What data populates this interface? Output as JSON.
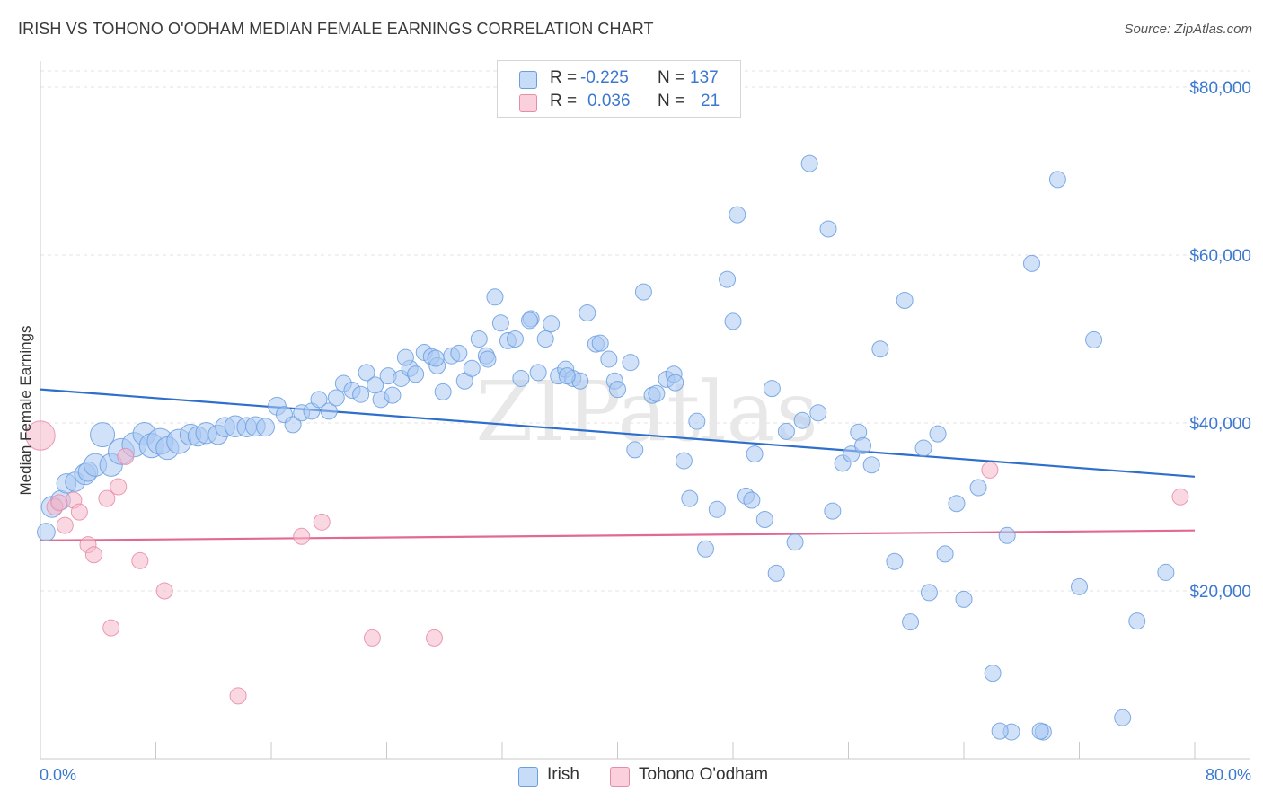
{
  "header": {
    "title": "IRISH VS TOHONO O'ODHAM MEDIAN FEMALE EARNINGS CORRELATION CHART",
    "source": "Source: ZipAtlas.com"
  },
  "legend": {
    "rows": [
      {
        "r_label": "R =",
        "r_value": "-0.225",
        "n_label": "N =",
        "n_value": "137",
        "color": "#a9c8f2"
      },
      {
        "r_label": "R =",
        "r_value": "0.036",
        "n_label": "N =",
        "n_value": "21",
        "color": "#f5b8cb"
      }
    ]
  },
  "bottom_legend": {
    "items": [
      {
        "label": "Irish",
        "color": "#a9c8f2"
      },
      {
        "label": "Tohono O'odham",
        "color": "#f5b8cb"
      }
    ]
  },
  "watermark": "ZIPatlas",
  "chart_data": {
    "type": "scatter",
    "title": "IRISH VS TOHONO O'ODHAM MEDIAN FEMALE EARNINGS CORRELATION CHART",
    "xlabel": "",
    "ylabel": "Median Female Earnings",
    "xlim": [
      0,
      80
    ],
    "ylim": [
      0,
      82000
    ],
    "x_tick_labels": [
      "0.0%",
      "80.0%"
    ],
    "y_ticks": [
      20000,
      40000,
      60000,
      80000
    ],
    "y_tick_labels": [
      "$20,000",
      "$40,000",
      "$60,000",
      "$80,000"
    ],
    "grid": "horizontal dashed",
    "legend_position": "top-center",
    "series": [
      {
        "name": "Irish",
        "color": "#6a9ee0",
        "fill": "#a9c8f2",
        "trend": {
          "x": [
            0,
            80
          ],
          "y": [
            44000,
            33600
          ],
          "color": "#2f6fcc"
        },
        "points": [
          [
            0.4,
            27000,
            1.1
          ],
          [
            0.8,
            30000,
            1.3
          ],
          [
            1.4,
            30800,
            1.2
          ],
          [
            1.8,
            32800,
            1.2
          ],
          [
            2.4,
            33000,
            1.2
          ],
          [
            3.1,
            33900,
            1.3
          ],
          [
            3.3,
            34200,
            1.2
          ],
          [
            3.8,
            35000,
            1.4
          ],
          [
            4.3,
            38600,
            1.5
          ],
          [
            4.9,
            35000,
            1.4
          ],
          [
            5.6,
            36600,
            1.6
          ],
          [
            6.5,
            37400,
            1.5
          ],
          [
            7.2,
            38700,
            1.4
          ],
          [
            7.7,
            37300,
            1.5
          ],
          [
            8.3,
            37800,
            1.6
          ],
          [
            8.8,
            37000,
            1.4
          ],
          [
            9.6,
            37800,
            1.5
          ],
          [
            10.4,
            38600,
            1.3
          ],
          [
            10.9,
            38400,
            1.2
          ],
          [
            11.5,
            38800,
            1.3
          ],
          [
            12.3,
            38600,
            1.2
          ],
          [
            12.8,
            39500,
            1.2
          ],
          [
            13.5,
            39600,
            1.3
          ],
          [
            14.3,
            39500,
            1.2
          ],
          [
            14.9,
            39600,
            1.2
          ],
          [
            15.6,
            39500,
            1.1
          ],
          [
            16.4,
            42000,
            1.1
          ],
          [
            16.9,
            41000,
            1.0
          ],
          [
            17.5,
            39800,
            1.0
          ],
          [
            18.1,
            41200,
            1.0
          ],
          [
            18.8,
            41400,
            1.0
          ],
          [
            19.3,
            42800,
            1.0
          ],
          [
            20.0,
            41400,
            1.0
          ],
          [
            20.5,
            43000,
            1.0
          ],
          [
            21.0,
            44700,
            1.0
          ],
          [
            21.6,
            43900,
            1.0
          ],
          [
            22.2,
            43400,
            1.0
          ],
          [
            22.6,
            46000,
            1.0
          ],
          [
            23.2,
            44500,
            1.0
          ],
          [
            23.6,
            42800,
            1.0
          ],
          [
            24.1,
            45600,
            1.0
          ],
          [
            24.4,
            43300,
            1.0
          ],
          [
            25.0,
            45300,
            1.0
          ],
          [
            25.6,
            46500,
            1.0
          ],
          [
            26.0,
            45800,
            1.0
          ],
          [
            26.6,
            48400,
            1.0
          ],
          [
            27.1,
            47900,
            1.0
          ],
          [
            27.5,
            46800,
            1.0
          ],
          [
            27.9,
            43700,
            1.0
          ],
          [
            28.5,
            48000,
            1.0
          ],
          [
            29.0,
            48300,
            1.0
          ],
          [
            29.4,
            45000,
            1.0
          ],
          [
            29.9,
            46500,
            1.0
          ],
          [
            30.4,
            50000,
            1.0
          ],
          [
            30.9,
            48000,
            1.0
          ],
          [
            31.5,
            55000,
            1.0
          ],
          [
            31.9,
            51900,
            1.0
          ],
          [
            32.4,
            49800,
            1.0
          ],
          [
            32.9,
            50000,
            1.0
          ],
          [
            33.3,
            45300,
            1.0
          ],
          [
            34.0,
            52400,
            1.0
          ],
          [
            34.5,
            46000,
            1.0
          ],
          [
            35.0,
            50000,
            1.0
          ],
          [
            35.4,
            51800,
            1.0
          ],
          [
            35.9,
            45600,
            1.0
          ],
          [
            36.4,
            46400,
            1.0
          ],
          [
            36.9,
            45300,
            1.0
          ],
          [
            37.4,
            45000,
            1.0
          ],
          [
            37.9,
            53100,
            1.0
          ],
          [
            38.5,
            49400,
            1.0
          ],
          [
            38.8,
            49500,
            1.0
          ],
          [
            39.4,
            47600,
            1.0
          ],
          [
            39.8,
            45000,
            1.0
          ],
          [
            40.0,
            44000,
            1.0
          ],
          [
            40.9,
            47200,
            1.0
          ],
          [
            41.2,
            36800,
            1.0
          ],
          [
            41.8,
            55600,
            1.0
          ],
          [
            42.4,
            43300,
            1.0
          ],
          [
            42.7,
            43500,
            1.0
          ],
          [
            43.4,
            45200,
            1.0
          ],
          [
            43.9,
            45800,
            1.0
          ],
          [
            44.6,
            35500,
            1.0
          ],
          [
            45.0,
            31000,
            1.0
          ],
          [
            45.5,
            40200,
            1.0
          ],
          [
            46.1,
            25000,
            1.0
          ],
          [
            46.9,
            29700,
            1.0
          ],
          [
            47.6,
            57100,
            1.0
          ],
          [
            48.0,
            52100,
            1.0
          ],
          [
            48.3,
            64800,
            1.0
          ],
          [
            48.9,
            31300,
            1.0
          ],
          [
            49.3,
            30800,
            1.0
          ],
          [
            49.5,
            36300,
            1.0
          ],
          [
            50.2,
            28500,
            1.0
          ],
          [
            50.7,
            44100,
            1.0
          ],
          [
            51.0,
            22100,
            1.0
          ],
          [
            51.7,
            39000,
            1.0
          ],
          [
            52.3,
            25800,
            1.0
          ],
          [
            52.8,
            40300,
            1.0
          ],
          [
            53.3,
            70900,
            1.0
          ],
          [
            53.9,
            41200,
            1.0
          ],
          [
            54.6,
            63100,
            1.0
          ],
          [
            54.9,
            29500,
            1.0
          ],
          [
            55.6,
            35200,
            1.0
          ],
          [
            56.2,
            36300,
            1.0
          ],
          [
            56.7,
            38900,
            1.0
          ],
          [
            57.0,
            37300,
            1.0
          ],
          [
            57.6,
            35000,
            1.0
          ],
          [
            58.2,
            48800,
            1.0
          ],
          [
            59.2,
            23500,
            1.0
          ],
          [
            59.9,
            54600,
            1.0
          ],
          [
            60.3,
            16300,
            1.0
          ],
          [
            61.2,
            37000,
            1.0
          ],
          [
            61.6,
            19800,
            1.0
          ],
          [
            62.2,
            38700,
            1.0
          ],
          [
            62.7,
            24400,
            1.0
          ],
          [
            63.5,
            30400,
            1.0
          ],
          [
            64.0,
            19000,
            1.0
          ],
          [
            65.0,
            32300,
            1.0
          ],
          [
            66.0,
            10200,
            1.0
          ],
          [
            67.0,
            26600,
            1.0
          ],
          [
            67.3,
            3200,
            1.0
          ],
          [
            68.7,
            59000,
            1.0
          ],
          [
            69.5,
            3200,
            1.0
          ],
          [
            70.5,
            69000,
            1.0
          ],
          [
            72.0,
            20500,
            1.0
          ],
          [
            73.0,
            49900,
            1.0
          ],
          [
            75.0,
            4900,
            1.0
          ],
          [
            76.0,
            16400,
            1.0
          ],
          [
            78.0,
            22200,
            1.0
          ],
          [
            69.3,
            3300,
            1.0
          ],
          [
            66.5,
            3300,
            1.0
          ],
          [
            44.0,
            44800,
            1.0
          ],
          [
            36.5,
            45600,
            1.0
          ],
          [
            33.9,
            52200,
            1.0
          ],
          [
            31.0,
            47600,
            1.0
          ],
          [
            27.4,
            47700,
            1.0
          ],
          [
            25.3,
            47800,
            1.0
          ]
        ]
      },
      {
        "name": "Tohono O'odham",
        "color": "#e88aa8",
        "fill": "#f5b8cb",
        "trend": {
          "x": [
            0,
            80
          ],
          "y": [
            26000,
            27200
          ],
          "color": "#e26a92"
        },
        "points": [
          [
            0.0,
            38500,
            1.8
          ],
          [
            1.0,
            30000,
            1.0
          ],
          [
            1.7,
            27800,
            1.0
          ],
          [
            2.3,
            30800,
            1.0
          ],
          [
            2.7,
            29400,
            1.0
          ],
          [
            3.3,
            25500,
            1.0
          ],
          [
            3.7,
            24300,
            1.0
          ],
          [
            4.6,
            31000,
            1.0
          ],
          [
            4.9,
            15600,
            1.0
          ],
          [
            5.4,
            32400,
            1.0
          ],
          [
            5.9,
            36000,
            1.0
          ],
          [
            6.9,
            23600,
            1.0
          ],
          [
            8.6,
            20000,
            1.0
          ],
          [
            13.7,
            7500,
            1.0
          ],
          [
            18.1,
            26500,
            1.0
          ],
          [
            19.5,
            28200,
            1.0
          ],
          [
            23.0,
            14400,
            1.0
          ],
          [
            27.3,
            14400,
            1.0
          ],
          [
            65.8,
            34400,
            1.0
          ],
          [
            79.0,
            31200,
            1.0
          ],
          [
            1.3,
            30500,
            1.0
          ]
        ]
      }
    ]
  }
}
